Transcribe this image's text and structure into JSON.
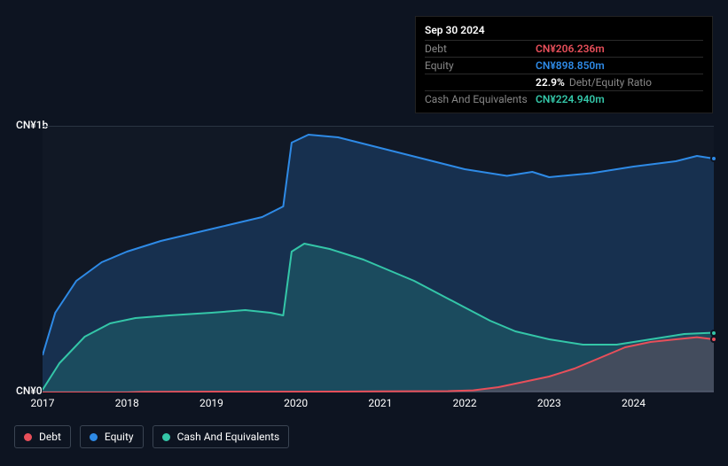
{
  "tooltip": {
    "date": "Sep 30 2024",
    "rows": [
      {
        "label": "Debt",
        "value": "CN¥206.236m",
        "color": "#e84f5a"
      },
      {
        "label": "Equity",
        "value": "CN¥898.850m",
        "color": "#2e8ae6"
      },
      {
        "label": "",
        "value": "22.9%",
        "sub": "Debt/Equity Ratio",
        "color": "#ffffff"
      },
      {
        "label": "Cash And Equivalents",
        "value": "CN¥224.940m",
        "color": "#34c6a8"
      }
    ]
  },
  "chart": {
    "type": "area",
    "ylim": [
      0,
      1000
    ],
    "y_ticks": [
      {
        "v": 1000,
        "label": "CN¥1b"
      },
      {
        "v": 0,
        "label": "CN¥0"
      }
    ],
    "x_years": [
      2017,
      2018,
      2019,
      2020,
      2021,
      2022,
      2023,
      2024
    ],
    "x_range": [
      2017,
      2024.95
    ],
    "background": "#0d1421",
    "grid_color": "#2a3442",
    "series": [
      {
        "name": "Equity",
        "color": "#2e8ae6",
        "fill_opacity": 0.22,
        "stroke_width": 2,
        "points": [
          [
            2017.0,
            140
          ],
          [
            2017.15,
            300
          ],
          [
            2017.4,
            420
          ],
          [
            2017.7,
            490
          ],
          [
            2018.0,
            530
          ],
          [
            2018.4,
            570
          ],
          [
            2018.8,
            600
          ],
          [
            2019.2,
            630
          ],
          [
            2019.6,
            660
          ],
          [
            2019.85,
            700
          ],
          [
            2019.95,
            940
          ],
          [
            2020.15,
            970
          ],
          [
            2020.5,
            960
          ],
          [
            2021.0,
            920
          ],
          [
            2021.5,
            880
          ],
          [
            2022.0,
            840
          ],
          [
            2022.5,
            815
          ],
          [
            2022.8,
            830
          ],
          [
            2023.0,
            810
          ],
          [
            2023.5,
            825
          ],
          [
            2024.0,
            850
          ],
          [
            2024.5,
            870
          ],
          [
            2024.75,
            890
          ],
          [
            2024.95,
            880
          ]
        ]
      },
      {
        "name": "Cash And Equivalents",
        "color": "#34c6a8",
        "fill_opacity": 0.18,
        "stroke_width": 2,
        "points": [
          [
            2017.0,
            10
          ],
          [
            2017.2,
            110
          ],
          [
            2017.5,
            210
          ],
          [
            2017.8,
            260
          ],
          [
            2018.1,
            280
          ],
          [
            2018.5,
            290
          ],
          [
            2019.0,
            300
          ],
          [
            2019.4,
            310
          ],
          [
            2019.7,
            300
          ],
          [
            2019.85,
            290
          ],
          [
            2019.95,
            530
          ],
          [
            2020.1,
            560
          ],
          [
            2020.4,
            540
          ],
          [
            2020.8,
            500
          ],
          [
            2021.1,
            460
          ],
          [
            2021.4,
            420
          ],
          [
            2021.7,
            370
          ],
          [
            2022.0,
            320
          ],
          [
            2022.3,
            270
          ],
          [
            2022.6,
            230
          ],
          [
            2023.0,
            200
          ],
          [
            2023.4,
            180
          ],
          [
            2023.8,
            180
          ],
          [
            2024.2,
            200
          ],
          [
            2024.6,
            220
          ],
          [
            2024.95,
            225
          ]
        ]
      },
      {
        "name": "Debt",
        "color": "#e84f5a",
        "fill_opacity": 0.2,
        "stroke_width": 2,
        "points": [
          [
            2017.0,
            0
          ],
          [
            2018.0,
            0
          ],
          [
            2018.2,
            2
          ],
          [
            2019.0,
            3
          ],
          [
            2020.0,
            3
          ],
          [
            2021.0,
            4
          ],
          [
            2021.8,
            5
          ],
          [
            2022.1,
            8
          ],
          [
            2022.4,
            20
          ],
          [
            2022.7,
            40
          ],
          [
            2023.0,
            60
          ],
          [
            2023.3,
            90
          ],
          [
            2023.6,
            130
          ],
          [
            2023.9,
            170
          ],
          [
            2024.2,
            190
          ],
          [
            2024.5,
            200
          ],
          [
            2024.75,
            208
          ],
          [
            2024.95,
            200
          ]
        ]
      }
    ],
    "markers": [
      {
        "x": 2024.95,
        "y": 880,
        "color": "#2e8ae6"
      },
      {
        "x": 2024.95,
        "y": 225,
        "color": "#34c6a8"
      },
      {
        "x": 2024.95,
        "y": 200,
        "color": "#e84f5a"
      }
    ],
    "legend": [
      {
        "label": "Debt",
        "color": "#e84f5a"
      },
      {
        "label": "Equity",
        "color": "#2e8ae6"
      },
      {
        "label": "Cash And Equivalents",
        "color": "#34c6a8"
      }
    ]
  }
}
